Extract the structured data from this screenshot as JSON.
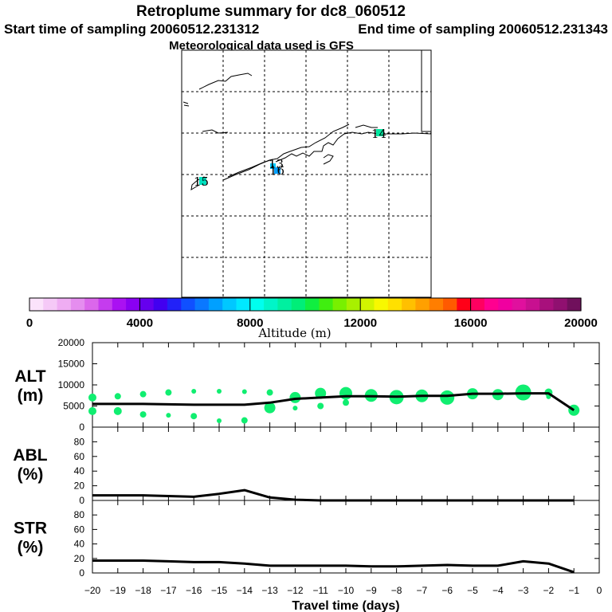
{
  "header": {
    "title": "Retroplume summary for dc8_060512",
    "start": "Start time of sampling 20060512.231312",
    "end": "End time of sampling 20060512.231343",
    "met": "Meteorological data used is GFS"
  },
  "map": {
    "labels": [
      {
        "text": "14",
        "color": "#00e8a0"
      },
      {
        "text": "13",
        "color": "#00c8ff"
      },
      {
        "text": "16",
        "color": "#00a0ff"
      },
      {
        "text": "15",
        "color": "#00e0c0"
      }
    ]
  },
  "colorbar": {
    "title": "Altitude (m)",
    "min": 0,
    "max": 20000,
    "tick_labels": [
      "0",
      "4000",
      "8000",
      "12000",
      "16000",
      "20000"
    ],
    "colors": [
      "#fbe3fb",
      "#f5c9f7",
      "#efadf3",
      "#e58def",
      "#db67eb",
      "#c53cee",
      "#aa11f2",
      "#8a00f2",
      "#6600ee",
      "#4200f0",
      "#2222f8",
      "#1050ff",
      "#0a78ff",
      "#00a0ff",
      "#00c8ff",
      "#00e8ff",
      "#00ffee",
      "#00f5c8",
      "#00f0a0",
      "#00ee78",
      "#10ee40",
      "#40ee10",
      "#78f000",
      "#a8f000",
      "#d2f400",
      "#f8f800",
      "#ffe000",
      "#ffc000",
      "#ffa000",
      "#ff7e00",
      "#ff5a00",
      "#ff0018",
      "#ff0060",
      "#ff0090",
      "#f000a0",
      "#e0109e",
      "#c81090",
      "#a8107c",
      "#901070",
      "#70105c"
    ]
  },
  "chart_data": [
    {
      "type": "line",
      "panel": "ALT",
      "ylabel": "ALT\n(m)",
      "ylabel_lines": [
        "ALT",
        "(m)"
      ],
      "ylim": [
        0,
        20000
      ],
      "yticks": [
        0,
        5000,
        10000,
        15000,
        20000
      ],
      "ytick_labels": [
        "0",
        "5000",
        "10000",
        "15000",
        "20000"
      ],
      "x": [
        -20,
        -19,
        -18,
        -17,
        -16,
        -15,
        -14,
        -13,
        -12,
        -11,
        -10,
        -9,
        -8,
        -7,
        -6,
        -5,
        -4,
        -3,
        -2,
        -1
      ],
      "line": [
        5500,
        5500,
        5500,
        5400,
        5300,
        5300,
        5300,
        5800,
        6700,
        7000,
        7300,
        7300,
        7200,
        7400,
        7400,
        7900,
        7900,
        8000,
        8000,
        4000
      ],
      "scatter": [
        {
          "x": -20,
          "y": 7000,
          "r": 5
        },
        {
          "x": -20,
          "y": 3800,
          "r": 5
        },
        {
          "x": -19,
          "y": 7300,
          "r": 4
        },
        {
          "x": -19,
          "y": 3800,
          "r": 5
        },
        {
          "x": -18,
          "y": 7800,
          "r": 4
        },
        {
          "x": -18,
          "y": 3000,
          "r": 4
        },
        {
          "x": -17,
          "y": 8200,
          "r": 4
        },
        {
          "x": -17,
          "y": 2800,
          "r": 3
        },
        {
          "x": -16,
          "y": 8500,
          "r": 3
        },
        {
          "x": -16,
          "y": 2600,
          "r": 4
        },
        {
          "x": -15,
          "y": 8500,
          "r": 3
        },
        {
          "x": -15,
          "y": 1500,
          "r": 3
        },
        {
          "x": -14,
          "y": 8400,
          "r": 3
        },
        {
          "x": -14,
          "y": 1600,
          "r": 4
        },
        {
          "x": -13,
          "y": 8200,
          "r": 4
        },
        {
          "x": -13,
          "y": 4600,
          "r": 7
        },
        {
          "x": -12,
          "y": 7000,
          "r": 7
        },
        {
          "x": -12,
          "y": 4500,
          "r": 3
        },
        {
          "x": -11,
          "y": 8000,
          "r": 7
        },
        {
          "x": -11,
          "y": 5000,
          "r": 4
        },
        {
          "x": -10,
          "y": 8000,
          "r": 8
        },
        {
          "x": -10,
          "y": 5800,
          "r": 4
        },
        {
          "x": -9,
          "y": 7500,
          "r": 8
        },
        {
          "x": -8,
          "y": 7100,
          "r": 9
        },
        {
          "x": -7,
          "y": 7400,
          "r": 8
        },
        {
          "x": -6,
          "y": 7000,
          "r": 9
        },
        {
          "x": -5,
          "y": 7900,
          "r": 7
        },
        {
          "x": -4,
          "y": 7700,
          "r": 7
        },
        {
          "x": -3,
          "y": 8200,
          "r": 10
        },
        {
          "x": -2,
          "y": 8200,
          "r": 5
        },
        {
          "x": -2,
          "y": 7200,
          "r": 3
        },
        {
          "x": -1,
          "y": 4000,
          "r": 7
        }
      ]
    },
    {
      "type": "line",
      "panel": "ABL",
      "ylabel": "ABL\n(%)",
      "ylabel_lines": [
        "ABL",
        "(%)"
      ],
      "ylim": [
        0,
        100
      ],
      "yticks": [
        0,
        20,
        40,
        60,
        80
      ],
      "ytick_labels": [
        "0",
        "20",
        "40",
        "60",
        "80"
      ],
      "x": [
        -20,
        -19,
        -18,
        -17,
        -16,
        -15,
        -14,
        -13,
        -12,
        -11,
        -10,
        -9,
        -8,
        -7,
        -6,
        -5,
        -4,
        -3,
        -2,
        -1
      ],
      "values": [
        7,
        7,
        7,
        6,
        5,
        9,
        14,
        4,
        1,
        0,
        0,
        0,
        0,
        0,
        0,
        0,
        0,
        0,
        0,
        0
      ]
    },
    {
      "type": "line",
      "panel": "STR",
      "ylabel": "STR\n(%)",
      "ylabel_lines": [
        "STR",
        "(%)"
      ],
      "ylim": [
        0,
        100
      ],
      "yticks": [
        0,
        20,
        40,
        60,
        80
      ],
      "ytick_labels": [
        "0",
        "20",
        "40",
        "60",
        "80"
      ],
      "xlabel": "Travel time (days)",
      "xlim": [
        -20,
        0
      ],
      "xticks": [
        -20,
        -19,
        -18,
        -17,
        -16,
        -15,
        -14,
        -13,
        -12,
        -11,
        -10,
        -9,
        -8,
        -7,
        -6,
        -5,
        -4,
        -3,
        -2,
        -1,
        0
      ],
      "xtick_labels": [
        "−20",
        "−19",
        "−18",
        "−17",
        "−16",
        "−15",
        "−14",
        "−13",
        "−12",
        "−11",
        "−10",
        "−9",
        "−8",
        "−7",
        "−6",
        "−5",
        "−4",
        "−3",
        "−2",
        "−1",
        "0"
      ],
      "x": [
        -20,
        -19,
        -18,
        -17,
        -16,
        -15,
        -14,
        -13,
        -12,
        -11,
        -10,
        -9,
        -8,
        -7,
        -6,
        -5,
        -4,
        -3,
        -2,
        -1
      ],
      "values": [
        17,
        17,
        17,
        16,
        15,
        15,
        13,
        10,
        10,
        10,
        10,
        9,
        9,
        10,
        11,
        10,
        10,
        16,
        13,
        1
      ]
    }
  ]
}
